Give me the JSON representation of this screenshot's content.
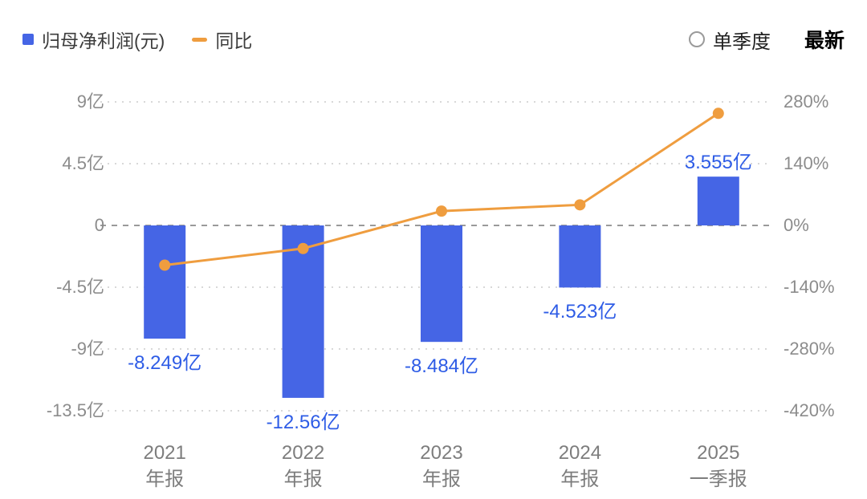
{
  "legend": {
    "profit_label": "归母净利润(元)",
    "yoy_label": "同比"
  },
  "controls": {
    "quarter_toggle_label": "单季度",
    "latest_label": "最新"
  },
  "colors": {
    "bar": "#4565e5",
    "line": "#ef9d3f",
    "value_label": "#2e5ce6",
    "axis_text": "#8c8c8c",
    "grid": "#d8d8d8",
    "zero_line": "#9a9a9a"
  },
  "chart_data": {
    "type": "bar+line",
    "title": "归母净利润(元) 与 同比",
    "categories": [
      {
        "year": "2021",
        "period": "年报"
      },
      {
        "year": "2022",
        "period": "年报"
      },
      {
        "year": "2023",
        "period": "年报"
      },
      {
        "year": "2024",
        "period": "年报"
      },
      {
        "year": "2025",
        "period": "一季报"
      }
    ],
    "series": [
      {
        "name": "归母净利润(元)",
        "type": "bar",
        "unit": "亿",
        "values": [
          -8.249,
          -12.56,
          -8.484,
          -4.523,
          3.555
        ],
        "labels": [
          "-8.249亿",
          "-12.56亿",
          "-8.484亿",
          "-4.523亿",
          "3.555亿"
        ]
      },
      {
        "name": "同比",
        "type": "line",
        "unit": "%",
        "values": [
          -90,
          -52.3,
          32.5,
          46.7,
          254
        ]
      }
    ],
    "left_axis": {
      "ticks": [
        "9亿",
        "4.5亿",
        "0",
        "-4.5亿",
        "-9亿",
        "-13.5亿"
      ],
      "values": [
        9,
        4.5,
        0,
        -4.5,
        -9,
        -13.5
      ]
    },
    "right_axis": {
      "ticks": [
        "280%",
        "140%",
        "0%",
        "-140%",
        "-280%",
        "-420%"
      ],
      "values": [
        280,
        140,
        0,
        -140,
        -280,
        -420
      ]
    },
    "layout": {
      "grid": "dotted",
      "zero_line": "dashed",
      "legend_position": "top-left"
    }
  }
}
